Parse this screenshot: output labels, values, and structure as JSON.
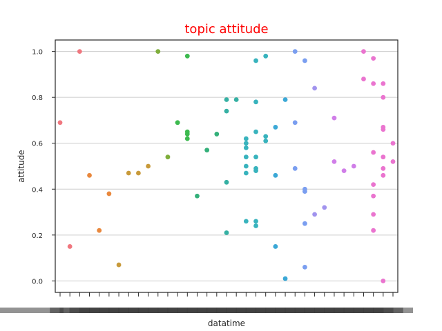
{
  "chart_data": {
    "type": "scatter",
    "title": "topic attitude",
    "xlabel": "datatime",
    "ylabel": "attitude",
    "ylim": [
      -0.05,
      1.05
    ],
    "yticks": [
      "0.0",
      "0.2",
      "0.4",
      "0.6",
      "0.8",
      "1.0"
    ],
    "y_grid": true,
    "x_grid": false,
    "legend": "none",
    "title_color": "#ff0000",
    "category_count": 35,
    "x_tick_labels_note": "overlapping, illegible date labels",
    "series": [
      {
        "color": "#f0777f",
        "points": [
          [
            0,
            0.69
          ],
          [
            1,
            0.15
          ],
          [
            2,
            1.0
          ]
        ]
      },
      {
        "color": "#e9883d",
        "points": [
          [
            3,
            0.46
          ],
          [
            4,
            0.22
          ],
          [
            5,
            0.38
          ]
        ]
      },
      {
        "color": "#c89a3a",
        "points": [
          [
            6,
            0.07
          ],
          [
            7,
            0.47
          ],
          [
            8,
            0.47
          ],
          [
            9,
            0.5
          ]
        ]
      },
      {
        "color": "#7fae3b",
        "points": [
          [
            10,
            1.0
          ],
          [
            11,
            0.54
          ]
        ]
      },
      {
        "color": "#3dba4f",
        "points": [
          [
            12,
            0.69
          ],
          [
            12,
            0.69
          ],
          [
            13,
            0.98
          ],
          [
            13,
            0.65
          ],
          [
            13,
            0.64
          ],
          [
            13,
            0.62
          ]
        ]
      },
      {
        "color": "#34b07a",
        "points": [
          [
            14,
            0.37
          ],
          [
            15,
            0.57
          ],
          [
            16,
            0.64
          ]
        ]
      },
      {
        "color": "#35b0a3",
        "points": [
          [
            17,
            0.79
          ],
          [
            17,
            0.74
          ],
          [
            17,
            0.43
          ],
          [
            17,
            0.21
          ],
          [
            18,
            0.79
          ]
        ]
      },
      {
        "color": "#38b3bd",
        "points": [
          [
            19,
            0.62
          ],
          [
            19,
            0.6
          ],
          [
            19,
            0.58
          ],
          [
            19,
            0.54
          ],
          [
            19,
            0.5
          ],
          [
            19,
            0.47
          ],
          [
            19,
            0.26
          ],
          [
            20,
            0.96
          ],
          [
            20,
            0.78
          ],
          [
            20,
            0.65
          ],
          [
            20,
            0.54
          ],
          [
            20,
            0.49
          ],
          [
            20,
            0.48
          ],
          [
            20,
            0.26
          ],
          [
            20,
            0.24
          ],
          [
            21,
            0.98
          ],
          [
            21,
            0.63
          ],
          [
            21,
            0.61
          ]
        ]
      },
      {
        "color": "#3ba8d6",
        "points": [
          [
            22,
            0.67
          ],
          [
            22,
            0.46
          ],
          [
            22,
            0.15
          ],
          [
            23,
            0.79
          ],
          [
            23,
            0.01
          ]
        ]
      },
      {
        "color": "#7a9ef0",
        "points": [
          [
            24,
            1.0
          ],
          [
            24,
            0.69
          ],
          [
            24,
            0.49
          ],
          [
            25,
            0.96
          ],
          [
            25,
            0.4
          ],
          [
            25,
            0.39
          ],
          [
            25,
            0.25
          ],
          [
            25,
            0.06
          ]
        ]
      },
      {
        "color": "#a193ee",
        "points": [
          [
            26,
            0.84
          ],
          [
            26,
            0.29
          ],
          [
            27,
            0.32
          ]
        ]
      },
      {
        "color": "#d07ee8",
        "points": [
          [
            28,
            0.71
          ],
          [
            28,
            0.52
          ],
          [
            29,
            0.48
          ],
          [
            30,
            0.5
          ]
        ]
      },
      {
        "color": "#ea74cf",
        "points": [
          [
            31,
            1.0
          ],
          [
            31,
            0.88
          ],
          [
            32,
            0.97
          ],
          [
            32,
            0.86
          ],
          [
            32,
            0.56
          ],
          [
            32,
            0.42
          ],
          [
            32,
            0.37
          ],
          [
            32,
            0.29
          ],
          [
            32,
            0.22
          ],
          [
            33,
            0.86
          ],
          [
            33,
            0.8
          ],
          [
            33,
            0.67
          ],
          [
            33,
            0.66
          ],
          [
            33,
            0.54
          ],
          [
            33,
            0.49
          ],
          [
            33,
            0.46
          ],
          [
            33,
            0.0
          ],
          [
            34,
            0.6
          ],
          [
            34,
            0.52
          ]
        ]
      }
    ]
  }
}
